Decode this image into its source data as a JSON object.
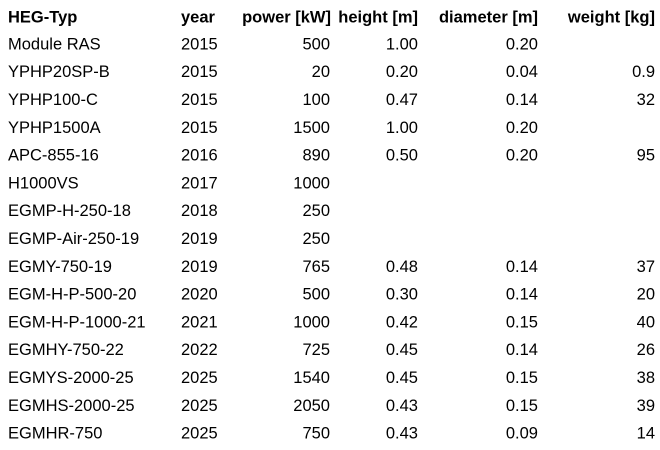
{
  "table": {
    "header": [
      "HEG-Typ",
      "year",
      "power [kW]",
      "height [m]",
      "diameter [m]",
      "weight [kg]"
    ],
    "rows": [
      [
        "Module RAS",
        "2015",
        "500",
        "1.00",
        "0.20",
        null
      ],
      [
        "YPHP20SP-B",
        "2015",
        "20",
        "0.20",
        "0.04",
        "0.9"
      ],
      [
        "YPHP100-C",
        "2015",
        "100",
        "0.47",
        "0.14",
        "32"
      ],
      [
        "YPHP1500A",
        "2015",
        "1500",
        "1.00",
        "0.20",
        null
      ],
      [
        "APC-855-16",
        "2016",
        "890",
        "0.50",
        "0.20",
        "95"
      ],
      [
        "H1000VS",
        "2017",
        "1000",
        null,
        null,
        null
      ],
      [
        "EGMP-H-250-18",
        "2018",
        "250",
        null,
        null,
        null
      ],
      [
        "EGMP-Air-250-19",
        "2019",
        "250",
        null,
        null,
        null
      ],
      [
        "EGMY-750-19",
        "2019",
        "765",
        "0.48",
        "0.14",
        "37"
      ],
      [
        "EGM-H-P-500-20",
        "2020",
        "500",
        "0.30",
        "0.14",
        "20"
      ],
      [
        "EGM-H-P-1000-21",
        "2021",
        "1000",
        "0.42",
        "0.15",
        "40"
      ],
      [
        "EGMHY-750-22",
        "2022",
        "725",
        "0.45",
        "0.14",
        "26"
      ],
      [
        "EGMYS-2000-25",
        "2025",
        "1540",
        "0.45",
        "0.15",
        "38"
      ],
      [
        "EGMHS-2000-25",
        "2025",
        "2050",
        "0.43",
        "0.15",
        "39"
      ],
      [
        "EGMHR-750",
        "2025",
        "750",
        "0.43",
        "0.09",
        "14"
      ]
    ]
  }
}
